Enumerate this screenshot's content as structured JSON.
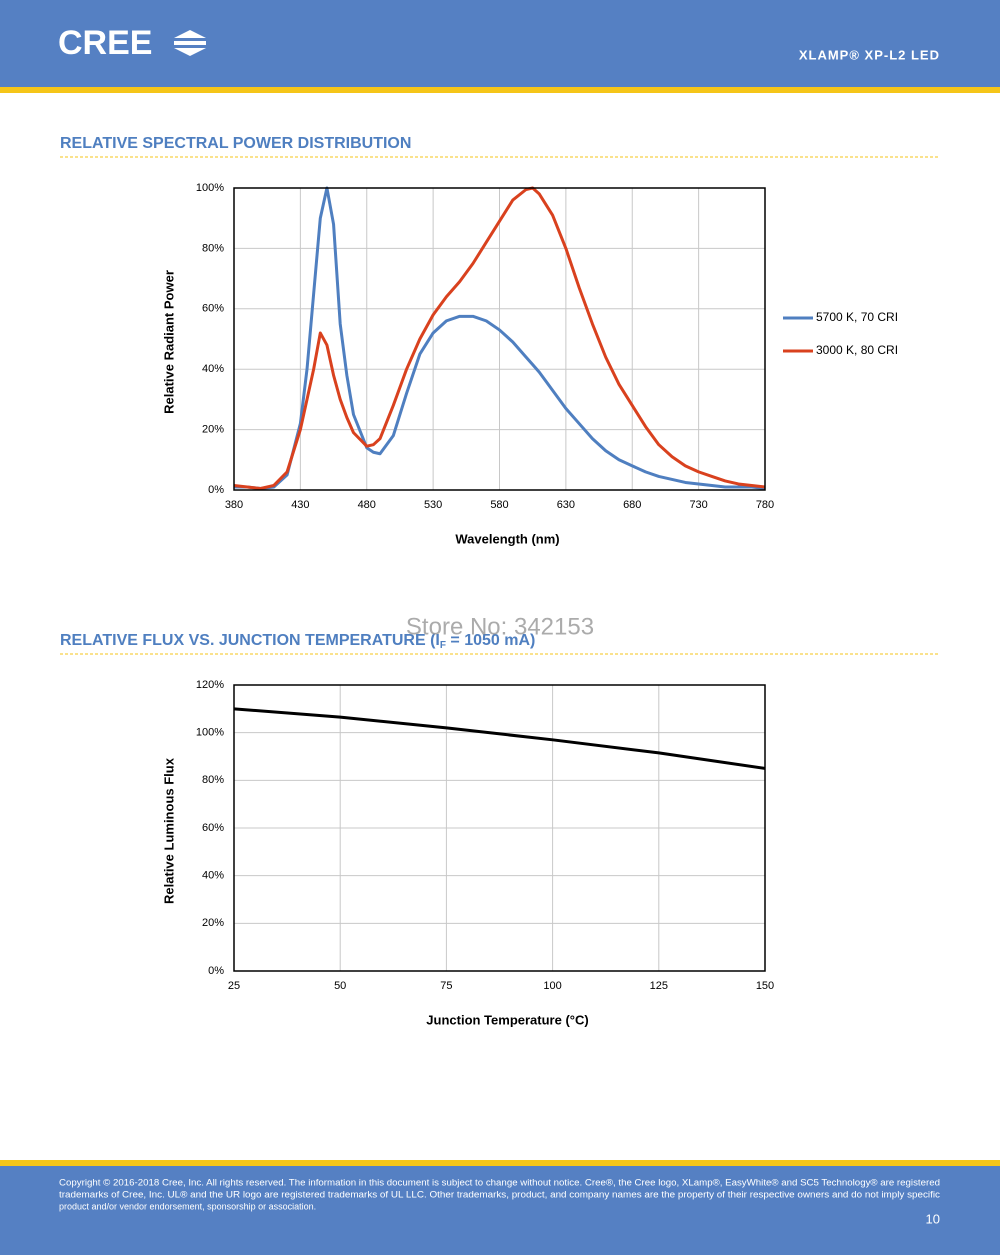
{
  "header": {
    "logo": "CREE",
    "product": "XLAMP® XP-L2 LED"
  },
  "watermark": "Store No: 342153",
  "chart_data": [
    {
      "type": "line",
      "title": "RELATIVE SPECTRAL POWER DISTRIBUTION",
      "x_label": "Wavelength (nm)",
      "y_label": "Relative Radiant Power",
      "x": [
        380,
        390,
        400,
        410,
        420,
        430,
        435,
        440,
        445,
        450,
        455,
        460,
        465,
        470,
        480,
        485,
        490,
        500,
        510,
        520,
        530,
        540,
        550,
        560,
        570,
        580,
        590,
        600,
        605,
        610,
        620,
        630,
        640,
        650,
        660,
        670,
        680,
        690,
        700,
        710,
        720,
        730,
        740,
        750,
        760,
        770,
        780
      ],
      "series": [
        {
          "name": "5700 K, 70 CRI",
          "color": "#4f7fc0",
          "values": [
            1,
            1,
            0.5,
            1,
            5,
            22,
            40,
            65,
            90,
            100,
            88,
            55,
            38,
            25,
            14,
            12.5,
            12,
            18,
            32,
            45,
            52,
            56,
            57.5,
            57.5,
            56,
            53,
            49,
            44,
            41.5,
            39,
            33,
            27,
            22,
            17,
            13,
            10,
            8,
            6,
            4.5,
            3.5,
            2.5,
            2,
            1.5,
            1,
            1,
            1,
            0.5
          ]
        },
        {
          "name": "3000 K, 80 CRI",
          "color": "#d9411e",
          "values": [
            1.5,
            1,
            0.5,
            1.5,
            6,
            20,
            30,
            40,
            52,
            48,
            38,
            30,
            24,
            19,
            14.5,
            15,
            17,
            28,
            40,
            50,
            58,
            64,
            69,
            75,
            82,
            89,
            96,
            99.5,
            100,
            98,
            91,
            80,
            67,
            55,
            44,
            35,
            28,
            21,
            15,
            11,
            8,
            6,
            4.5,
            3,
            2,
            1.5,
            1
          ]
        }
      ],
      "xlim": [
        380,
        780
      ],
      "xticks": [
        380,
        430,
        480,
        530,
        580,
        630,
        680,
        730,
        780
      ],
      "ylim": [
        0,
        100
      ],
      "yticks": [
        {
          "value": 0,
          "label": "0%"
        },
        {
          "value": 20,
          "label": "20%"
        },
        {
          "value": 40,
          "label": "40%"
        },
        {
          "value": 60,
          "label": "60%"
        },
        {
          "value": 80,
          "label": "80%"
        },
        {
          "value": 100,
          "label": "100%"
        }
      ],
      "grid": true,
      "legend": "right"
    },
    {
      "type": "line",
      "title": "RELATIVE FLUX VS. JUNCTION TEMPERATURE (I",
      "title_sub": "F",
      "title_end": " = 1050 mA)",
      "x_label": "Junction Temperature (°C)",
      "y_label": "Relative Luminous Flux",
      "x": [
        25,
        50,
        75,
        100,
        125,
        150
      ],
      "values": [
        110,
        106.5,
        102,
        97,
        91.5,
        85
      ],
      "color": "#000000",
      "xlim": [
        25,
        150
      ],
      "xticks": [
        25,
        50,
        75,
        100,
        125,
        150
      ],
      "ylim": [
        0,
        120
      ],
      "yticks": [
        {
          "value": 0,
          "label": "0%"
        },
        {
          "value": 20,
          "label": "20%"
        },
        {
          "value": 40,
          "label": "40%"
        },
        {
          "value": 60,
          "label": "60%"
        },
        {
          "value": 80,
          "label": "80%"
        },
        {
          "value": 100,
          "label": "100%"
        },
        {
          "value": 120,
          "label": "120%"
        }
      ],
      "grid": true
    }
  ],
  "footer": {
    "copyright": [
      "Copyright © 2016-2018 Cree, Inc. All rights reserved. The information in this document is subject to change without notice. Cree®, the Cree logo, XLamp®, EasyWhite® and SC5 Technology® are registered",
      "trademarks of Cree, Inc. UL® and the UR logo are registered trademarks of UL LLC. Other trademarks, product, and company names are the property of their respective owners and do not imply specific",
      "product and/or vendor endorsement, sponsorship or association."
    ],
    "page": "10"
  }
}
